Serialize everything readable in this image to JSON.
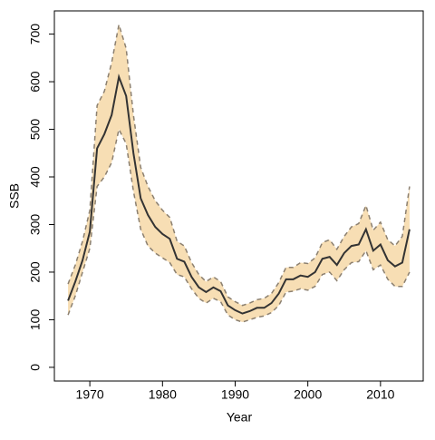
{
  "chart_data": {
    "type": "line",
    "xlabel": "Year",
    "ylabel": "SSB",
    "x": [
      1967,
      1968,
      1969,
      1970,
      1971,
      1972,
      1973,
      1974,
      1975,
      1976,
      1977,
      1978,
      1979,
      1980,
      1981,
      1982,
      1983,
      1984,
      1985,
      1986,
      1987,
      1988,
      1989,
      1990,
      1991,
      1992,
      1993,
      1994,
      1995,
      1996,
      1997,
      1998,
      1999,
      2000,
      2001,
      2002,
      2003,
      2004,
      2005,
      2006,
      2007,
      2008,
      2009,
      2010,
      2011,
      2012,
      2013,
      2014
    ],
    "values": [
      140,
      180,
      225,
      285,
      460,
      490,
      530,
      610,
      570,
      450,
      355,
      320,
      295,
      280,
      270,
      228,
      222,
      190,
      168,
      158,
      168,
      160,
      130,
      120,
      113,
      118,
      125,
      125,
      135,
      155,
      185,
      185,
      193,
      190,
      200,
      228,
      232,
      215,
      240,
      255,
      258,
      290,
      245,
      258,
      225,
      212,
      220,
      290
    ],
    "lower": [
      110,
      150,
      200,
      250,
      380,
      400,
      430,
      500,
      470,
      370,
      290,
      255,
      240,
      230,
      220,
      195,
      190,
      165,
      145,
      135,
      145,
      138,
      110,
      100,
      95,
      100,
      105,
      108,
      115,
      130,
      158,
      160,
      165,
      162,
      170,
      195,
      200,
      182,
      205,
      220,
      222,
      245,
      205,
      215,
      185,
      170,
      170,
      200
    ],
    "upper": [
      175,
      215,
      265,
      330,
      550,
      580,
      640,
      720,
      670,
      530,
      420,
      380,
      350,
      330,
      315,
      265,
      255,
      220,
      195,
      180,
      190,
      180,
      148,
      138,
      130,
      135,
      142,
      145,
      155,
      178,
      210,
      210,
      220,
      218,
      230,
      262,
      268,
      248,
      275,
      295,
      302,
      340,
      288,
      305,
      268,
      255,
      275,
      380
    ],
    "color": "#333333",
    "band_color": "#f7deb4",
    "bound_color": "#8c8070",
    "xlim": [
      1965.12,
      2015.88
    ],
    "xticks": [
      1970,
      1980,
      1990,
      2000,
      2010
    ],
    "ylim": [
      -28.8,
      748.8
    ],
    "yticks": [
      0,
      100,
      200,
      300,
      400,
      500,
      600,
      700
    ]
  }
}
